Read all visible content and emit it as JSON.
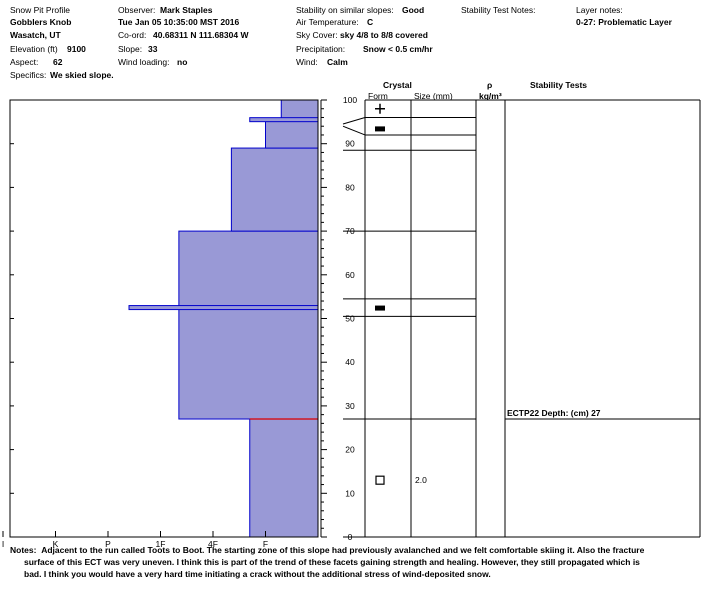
{
  "header": {
    "col1": {
      "title": "Snow Pit Profile",
      "location1": "Gobblers Knob",
      "location2": "Wasatch, UT",
      "elevation_label": "Elevation (ft)",
      "elevation_value": "9100",
      "aspect_label": "Aspect:",
      "aspect_value": "62",
      "specifics_label": "Specifics:",
      "specifics_value": "We skied slope."
    },
    "col2": {
      "observer_label": "Observer:",
      "observer_value": "Mark Staples",
      "datetime": "Tue Jan 05 10:35:00 MST 2016",
      "coord_label": "Co-ord:",
      "coord_value": "40.68311 N 111.68304 W",
      "slope_label": "Slope:",
      "slope_value": "33",
      "wind_loading_label": "Wind loading:",
      "wind_loading_value": "no"
    },
    "col3": {
      "stability_label": "Stability on similar slopes:",
      "stability_value": "Good",
      "air_temp_label": "Air Temperature:",
      "air_temp_value": "C",
      "sky_label": "Sky Cover:",
      "sky_value": "sky 4/8 to 8/8 covered",
      "precip_label": "Precipitation:",
      "precip_value": "Snow < 0.5 cm/hr",
      "wind_label": "Wind:",
      "wind_value": "Calm"
    },
    "col4": {
      "stability_notes_label": "Stability Test Notes:"
    },
    "col5": {
      "layer_notes_label": "Layer notes:",
      "layer_notes_value": "0-27: Problematic Layer"
    }
  },
  "table_headers": {
    "crystal": "Crystal",
    "form": "Form",
    "size": "Size (mm)",
    "rho": "ρ",
    "density_unit": "kg/m³",
    "stability_tests": "Stability Tests"
  },
  "notes": {
    "label": "Notes:",
    "line1": "Adjacent to the run called Toots to Boot. The starting zone of this slope had previously avalanched and we felt comfortable skiing it. Also the fracture",
    "line2": "surface of this ECT was very uneven. I think this is part of the trend of these facets gaining strength and healing. However, they still propagated which is",
    "line3": "bad. I think you would have a very hard time initiating a crack without the additional stress of wind-deposited snow."
  },
  "chart_data": {
    "type": "bar",
    "description_axis": "height (cm)",
    "ylim": [
      0,
      100
    ],
    "y_ticks": [
      0,
      10,
      20,
      30,
      40,
      50,
      60,
      70,
      80,
      90,
      100
    ],
    "hardness_ticks": [
      "I",
      "K",
      "P",
      "1F",
      "4F",
      "F"
    ],
    "hardness_scale_values": {
      "F": 1,
      "4F": 2,
      "1F": 3,
      "P": 4,
      "K": 5,
      "I": 6
    },
    "hardness_layers": [
      {
        "bottom": 0,
        "top": 27,
        "hardness": 1.3
      },
      {
        "bottom": 27,
        "top": 70,
        "hardness": 2.65
      },
      {
        "bottom": 70,
        "top": 89,
        "hardness": 1.65
      },
      {
        "bottom": 89,
        "top": 95.5,
        "hardness": 1.0
      },
      {
        "bottom": 95.5,
        "top": 100,
        "hardness": 0.7
      }
    ],
    "thin_layers": [
      {
        "height": 52.5,
        "hardness": 3.6
      },
      {
        "height": 95.5,
        "hardness": 1.3
      }
    ],
    "problem_layer_height": 27,
    "problem_layer_color": "#dd0000",
    "bar_fill_color": "#9999d6",
    "bar_stroke_color": "#0000cc",
    "crystal_layer_lines": [
      96,
      92,
      88.5,
      70,
      54.5,
      50.5,
      27
    ],
    "crystal_symbols": [
      {
        "height": 98,
        "form": "plus"
      },
      {
        "height": 93.5,
        "form": "bar"
      },
      {
        "height": 52.5,
        "form": "bar"
      },
      {
        "height": 13,
        "form": "square",
        "size": "2.0"
      }
    ],
    "stability_tests": [
      {
        "height": 27,
        "label": "ECTP22   Depth: (cm) 27"
      }
    ]
  }
}
